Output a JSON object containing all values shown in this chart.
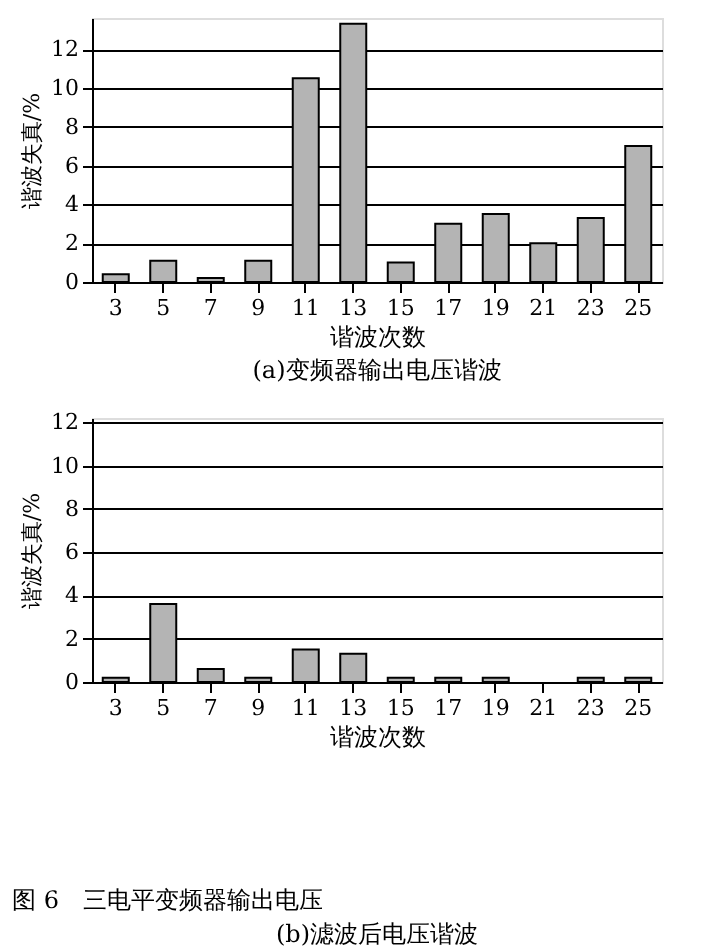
{
  "chart_data": [
    {
      "type": "bar",
      "title": "(a)变频器输出电压谐波",
      "xlabel": "谐波次数",
      "ylabel": "谐波失真/%",
      "categories": [
        "3",
        "5",
        "7",
        "9",
        "11",
        "13",
        "15",
        "17",
        "19",
        "21",
        "23",
        "25"
      ],
      "series": [
        {
          "color": "#b4b4b4",
          "values": [
            0.4,
            1.1,
            0.2,
            1.1,
            10.5,
            13.3,
            1.0,
            3.0,
            3.5,
            2.0,
            3.3,
            7.0
          ]
        }
      ],
      "ylim": [
        0,
        13.6
      ],
      "yticks": [
        0,
        2,
        4,
        6,
        8,
        10,
        12
      ],
      "grid": "y"
    },
    {
      "type": "bar",
      "title": "(b)滤波后电压谐波",
      "xlabel": "谐波次数",
      "ylabel": "谐波失真/%",
      "categories": [
        "3",
        "5",
        "7",
        "9",
        "11",
        "13",
        "15",
        "17",
        "19",
        "21",
        "23",
        "25"
      ],
      "series": [
        {
          "color": "#b4b4b4",
          "values": [
            0.2,
            3.6,
            0.6,
            0.2,
            1.5,
            1.3,
            0.2,
            0.2,
            0.2,
            null,
            0.2,
            0.2
          ]
        }
      ],
      "ylim": [
        0,
        12.2
      ],
      "yticks": [
        0,
        2,
        4,
        6,
        8,
        10,
        12
      ],
      "grid": "y",
      "annotations": [
        "图 6　三电平变频器输出电压"
      ]
    }
  ]
}
